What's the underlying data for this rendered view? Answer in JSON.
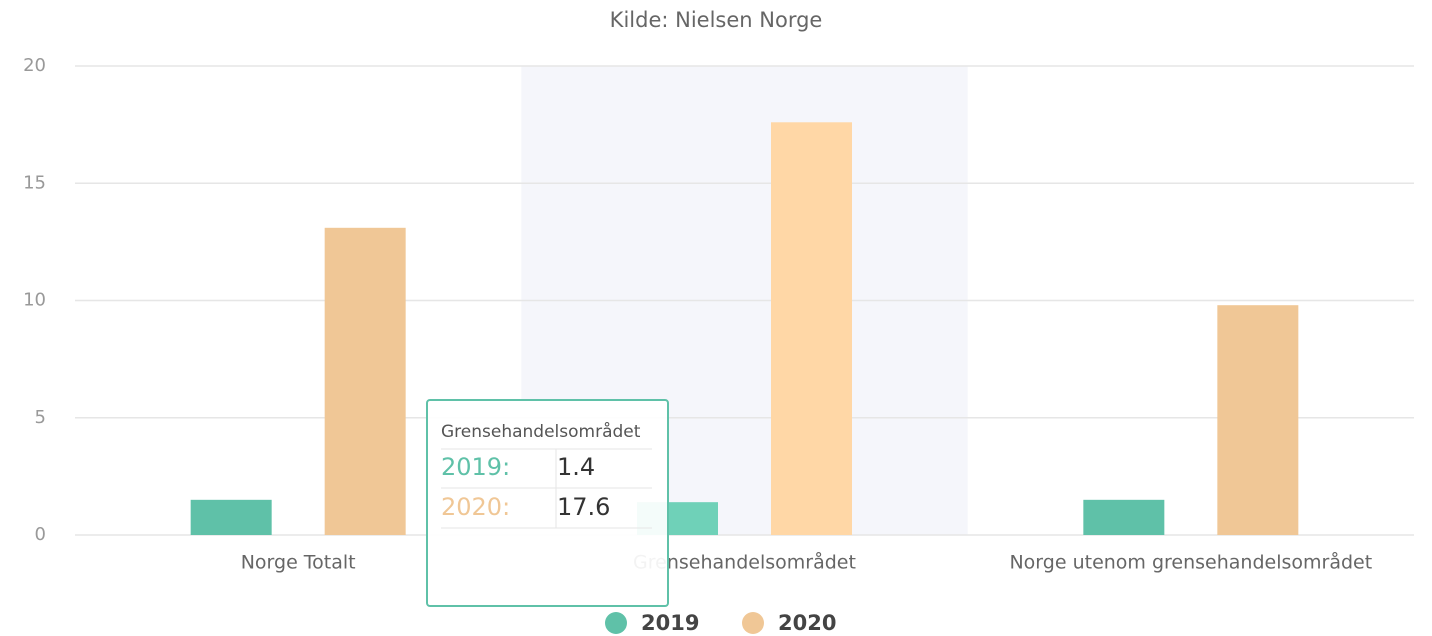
{
  "chart_data": {
    "type": "bar",
    "subtitle": "Kilde: Nielsen Norge",
    "categories": [
      "Norge Totalt",
      "Grensehandelsområdet",
      "Norge utenom grensehandelsområdet"
    ],
    "series": [
      {
        "name": "2019",
        "color": "#5fc1a8",
        "values": [
          1.5,
          1.4,
          1.5
        ]
      },
      {
        "name": "2020",
        "color": "#f0c796",
        "values": [
          13.1,
          17.6,
          9.8
        ]
      }
    ],
    "ylim": [
      0,
      20
    ],
    "yticks": [
      0,
      5,
      10,
      15,
      20
    ],
    "grid": true,
    "legend": "bottom",
    "tooltip": {
      "labels": [
        "2019:",
        "2020:"
      ]
    }
  }
}
